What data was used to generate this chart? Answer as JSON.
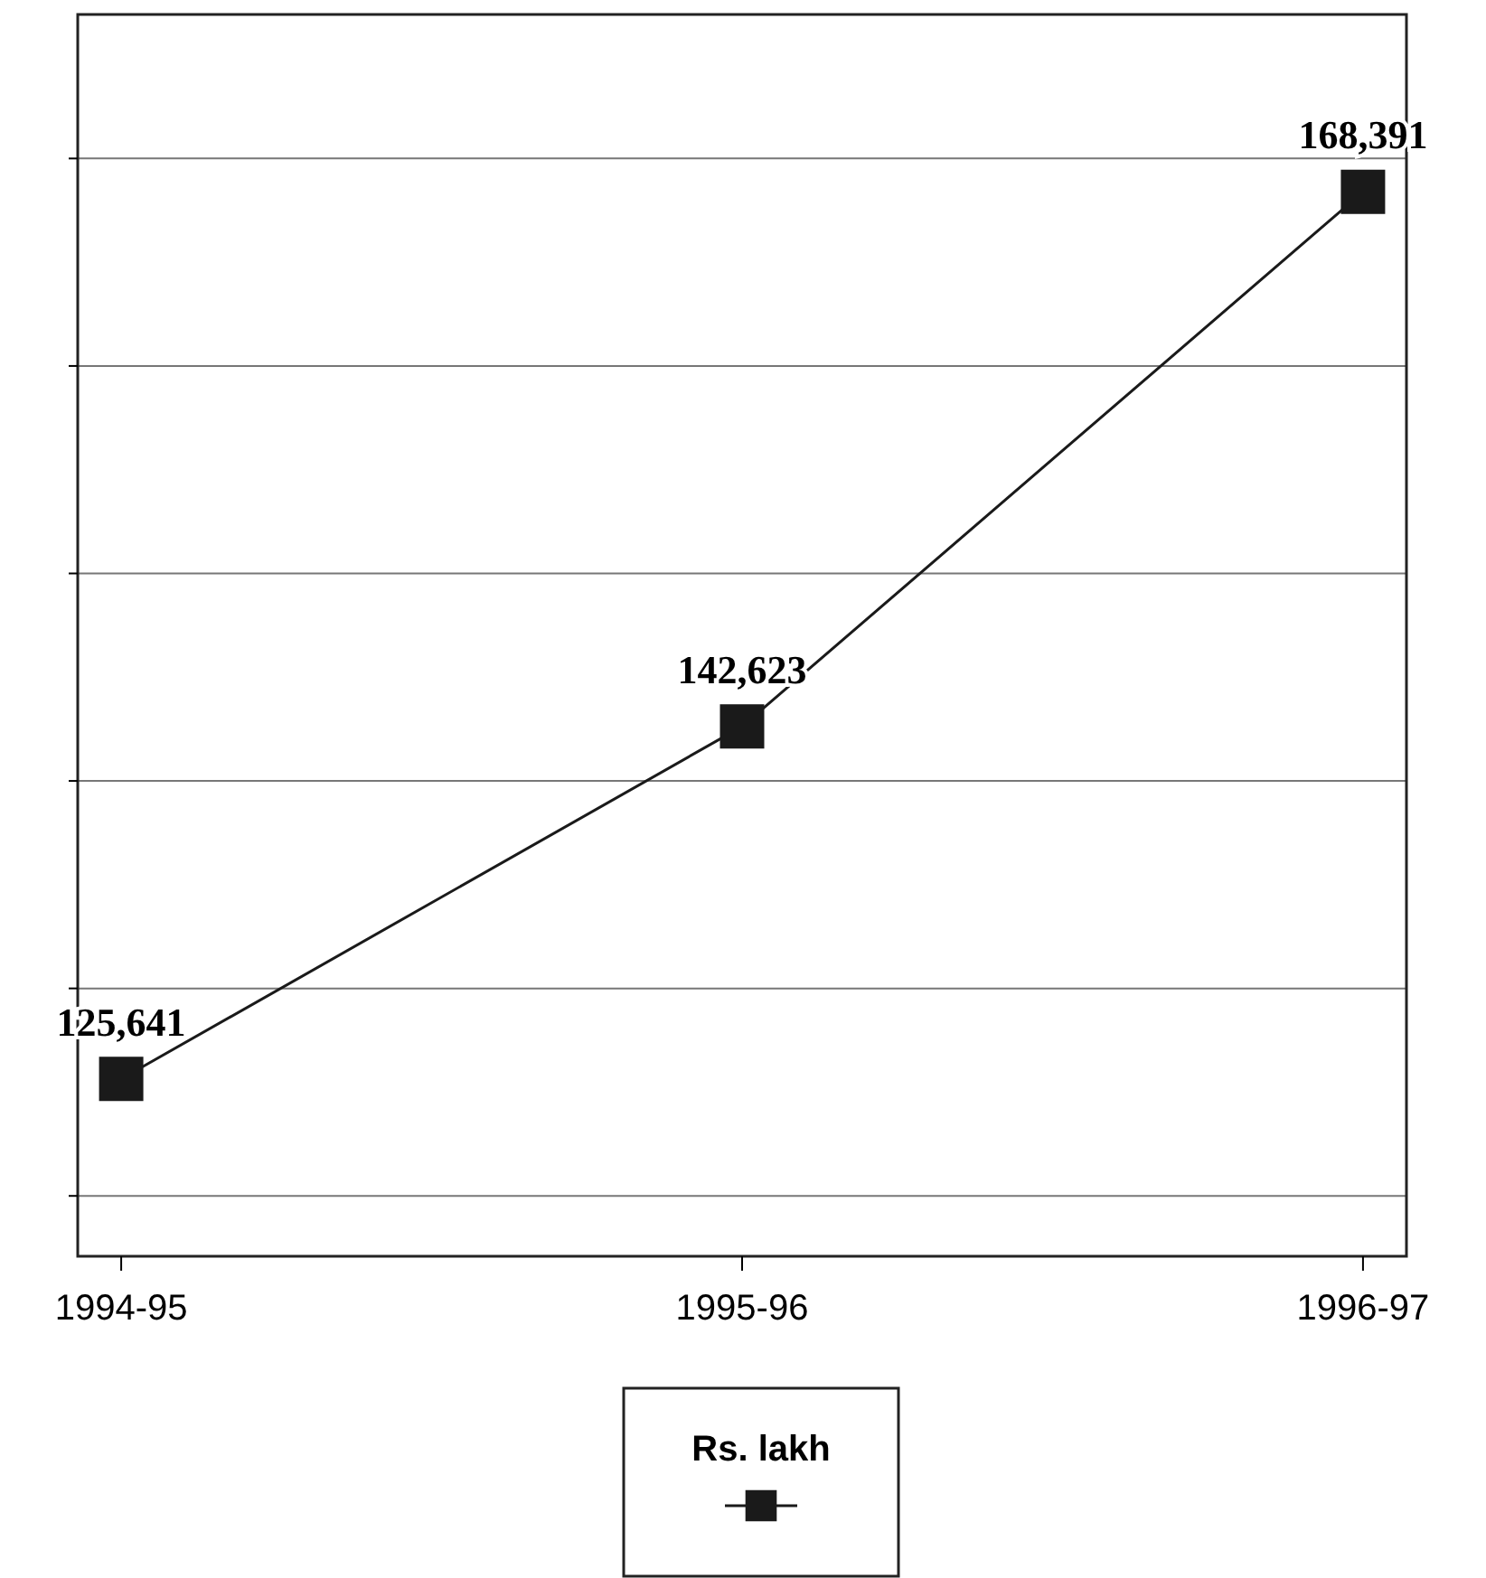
{
  "chart_data": {
    "type": "line",
    "categories": [
      "1994-95",
      "1995-96",
      "1996-97"
    ],
    "series": [
      {
        "name": "Rs. lakh",
        "color": "#1a1a1a",
        "values": [
          125641,
          142623,
          168391
        ],
        "value_labels": [
          "125,641",
          "142,623",
          "168,391"
        ]
      }
    ],
    "grid": "y",
    "legend": "bottom",
    "marker": "square",
    "line_style": "solid",
    "tick_labels": "x"
  }
}
